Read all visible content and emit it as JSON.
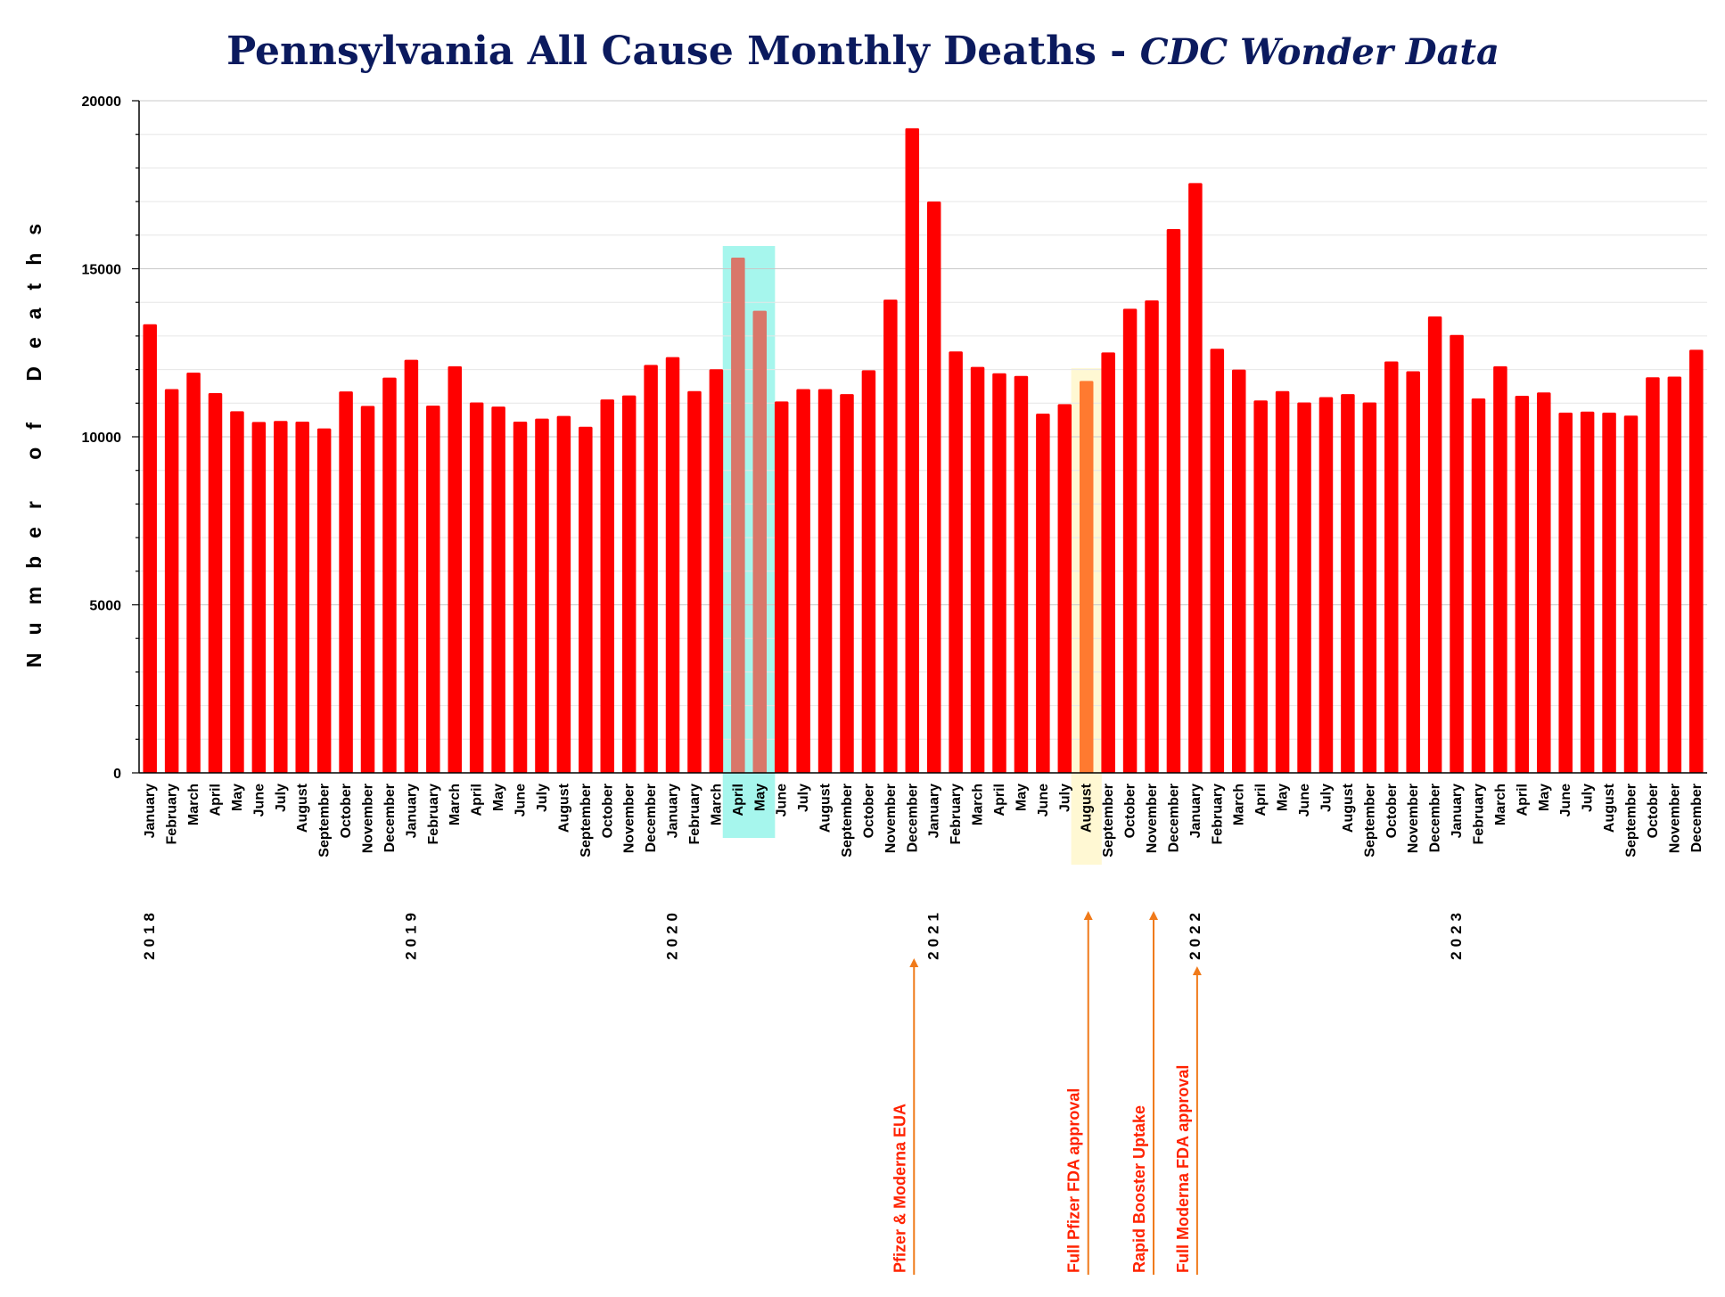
{
  "chart_data": {
    "type": "bar",
    "title": "Pennsylvania All Cause Monthly Deaths - ",
    "subtitle": "CDC Wonder Data",
    "ylabel": "Number of Deaths",
    "xlabel": "",
    "ylim": [
      0,
      20000
    ],
    "y_ticks": [
      0,
      5000,
      10000,
      15000,
      20000
    ],
    "grid": true,
    "bar_color": "#ff0000",
    "categories": [
      "January",
      "February",
      "March",
      "April",
      "May",
      "June",
      "July",
      "August",
      "September",
      "October",
      "November",
      "December",
      "January",
      "February",
      "March",
      "April",
      "May",
      "June",
      "July",
      "August",
      "September",
      "October",
      "November",
      "December",
      "January",
      "February",
      "March",
      "April",
      "May",
      "June",
      "July",
      "August",
      "September",
      "October",
      "November",
      "December",
      "January",
      "February",
      "March",
      "April",
      "May",
      "June",
      "July",
      "August",
      "September",
      "October",
      "November",
      "December",
      "January",
      "February",
      "March",
      "April",
      "May",
      "June",
      "July",
      "August",
      "September",
      "October",
      "November",
      "December",
      "January",
      "February",
      "March",
      "April",
      "May",
      "June",
      "July",
      "August",
      "September",
      "October",
      "November",
      "December"
    ],
    "years": [
      {
        "label": "2018",
        "start_index": 0
      },
      {
        "label": "2019",
        "start_index": 12
      },
      {
        "label": "2020",
        "start_index": 24
      },
      {
        "label": "2021",
        "start_index": 36
      },
      {
        "label": "2022",
        "start_index": 48
      },
      {
        "label": "2023",
        "start_index": 60
      }
    ],
    "values": [
      13350,
      11420,
      11910,
      11300,
      10760,
      10440,
      10470,
      10450,
      10250,
      11350,
      10920,
      11760,
      12290,
      10930,
      12100,
      11020,
      10900,
      10450,
      10540,
      10620,
      10300,
      11110,
      11230,
      12140,
      12370,
      11360,
      12010,
      15330,
      13750,
      11050,
      11420,
      11420,
      11270,
      11980,
      14080,
      19180,
      17000,
      12540,
      12080,
      11890,
      11810,
      10690,
      10970,
      11660,
      12510,
      13810,
      14060,
      16180,
      17550,
      12620,
      12000,
      11080,
      11360,
      11020,
      11180,
      11270,
      11020,
      12240,
      11950,
      13580,
      13030,
      11140,
      12100,
      11220,
      11320,
      10720,
      10750,
      10720,
      10630,
      11770,
      11790,
      12590
    ],
    "highlights": [
      {
        "indices": [
          27,
          28
        ],
        "color": "#00e5cc",
        "bar_color": "#d9776a"
      },
      {
        "indices": [
          43
        ],
        "color": "#ffea80",
        "bar_color": "#ff7a30"
      }
    ],
    "annotations": [
      {
        "text": "Pfizer & Moderna EUA",
        "index": 35,
        "color": "#ff2200",
        "arrow_color": "#f07a1a"
      },
      {
        "text": "Full Pfizer FDA approval",
        "index": 43,
        "color": "#ff2200",
        "arrow_color": "#f07a1a"
      },
      {
        "text": "Rapid Booster Uptake",
        "index": 46,
        "color": "#ff2200",
        "arrow_color": "#f07a1a"
      },
      {
        "text": "Full Moderna FDA approval",
        "index": 48,
        "color": "#ff2200",
        "arrow_color": "#f07a1a"
      }
    ]
  }
}
